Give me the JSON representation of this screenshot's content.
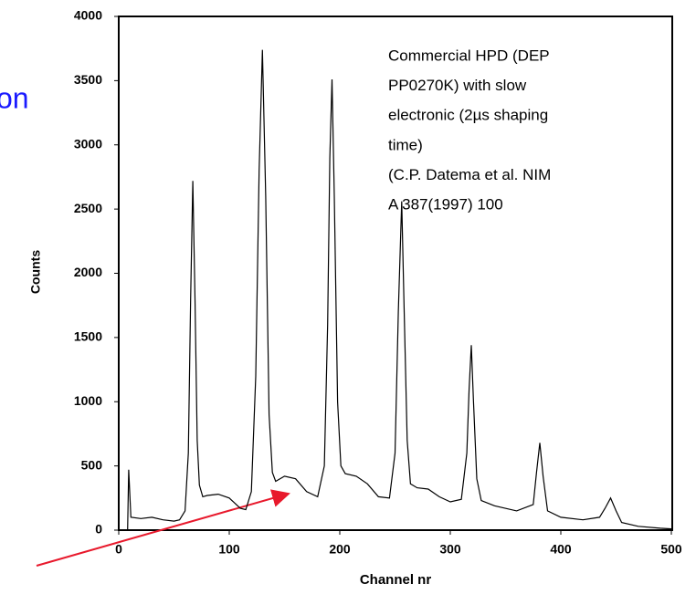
{
  "slide_text": "on",
  "chart_data": {
    "type": "line",
    "xlabel": "Channel nr",
    "ylabel": "Counts",
    "annotation": [
      "Commercial HPD (DEP",
      "PP0270K) with slow",
      "electronic (2µs shaping",
      "time)",
      "(C.P. Datema et al. NIM",
      "A 387(1997) 100"
    ],
    "color": "#000000",
    "x": [
      8,
      9,
      11,
      20,
      30,
      40,
      50,
      55,
      60,
      63,
      65,
      67,
      69,
      71,
      73,
      76,
      80,
      90,
      100,
      110,
      115,
      120,
      124,
      127,
      130,
      133,
      136,
      139,
      142,
      150,
      160,
      170,
      180,
      186,
      189,
      191,
      193,
      195,
      198,
      201,
      205,
      215,
      225,
      235,
      245,
      250,
      253,
      256,
      258,
      261,
      264,
      270,
      280,
      290,
      300,
      310,
      315,
      317,
      319,
      321,
      324,
      328,
      340,
      360,
      375,
      378,
      381,
      384,
      388,
      400,
      420,
      435,
      440,
      445,
      450,
      455,
      470,
      490,
      500
    ],
    "values": [
      0,
      470,
      100,
      90,
      100,
      80,
      70,
      80,
      150,
      600,
      1800,
      2720,
      1800,
      700,
      350,
      260,
      270,
      280,
      250,
      170,
      160,
      300,
      1200,
      2800,
      3740,
      2600,
      900,
      450,
      380,
      420,
      400,
      300,
      260,
      500,
      1600,
      2900,
      3510,
      2600,
      1000,
      500,
      440,
      420,
      360,
      260,
      250,
      600,
      1700,
      2560,
      1800,
      700,
      360,
      330,
      320,
      260,
      220,
      240,
      600,
      1100,
      1440,
      1000,
      400,
      230,
      190,
      150,
      200,
      450,
      680,
      420,
      150,
      100,
      80,
      100,
      170,
      250,
      150,
      60,
      30,
      15,
      10
    ],
    "xlim": [
      0,
      500
    ],
    "ylim": [
      0,
      4000
    ],
    "xticks": [
      0,
      100,
      200,
      300,
      400,
      500
    ],
    "yticks": [
      0,
      500,
      1000,
      1500,
      2000,
      2500,
      3000,
      3500,
      4000
    ]
  }
}
